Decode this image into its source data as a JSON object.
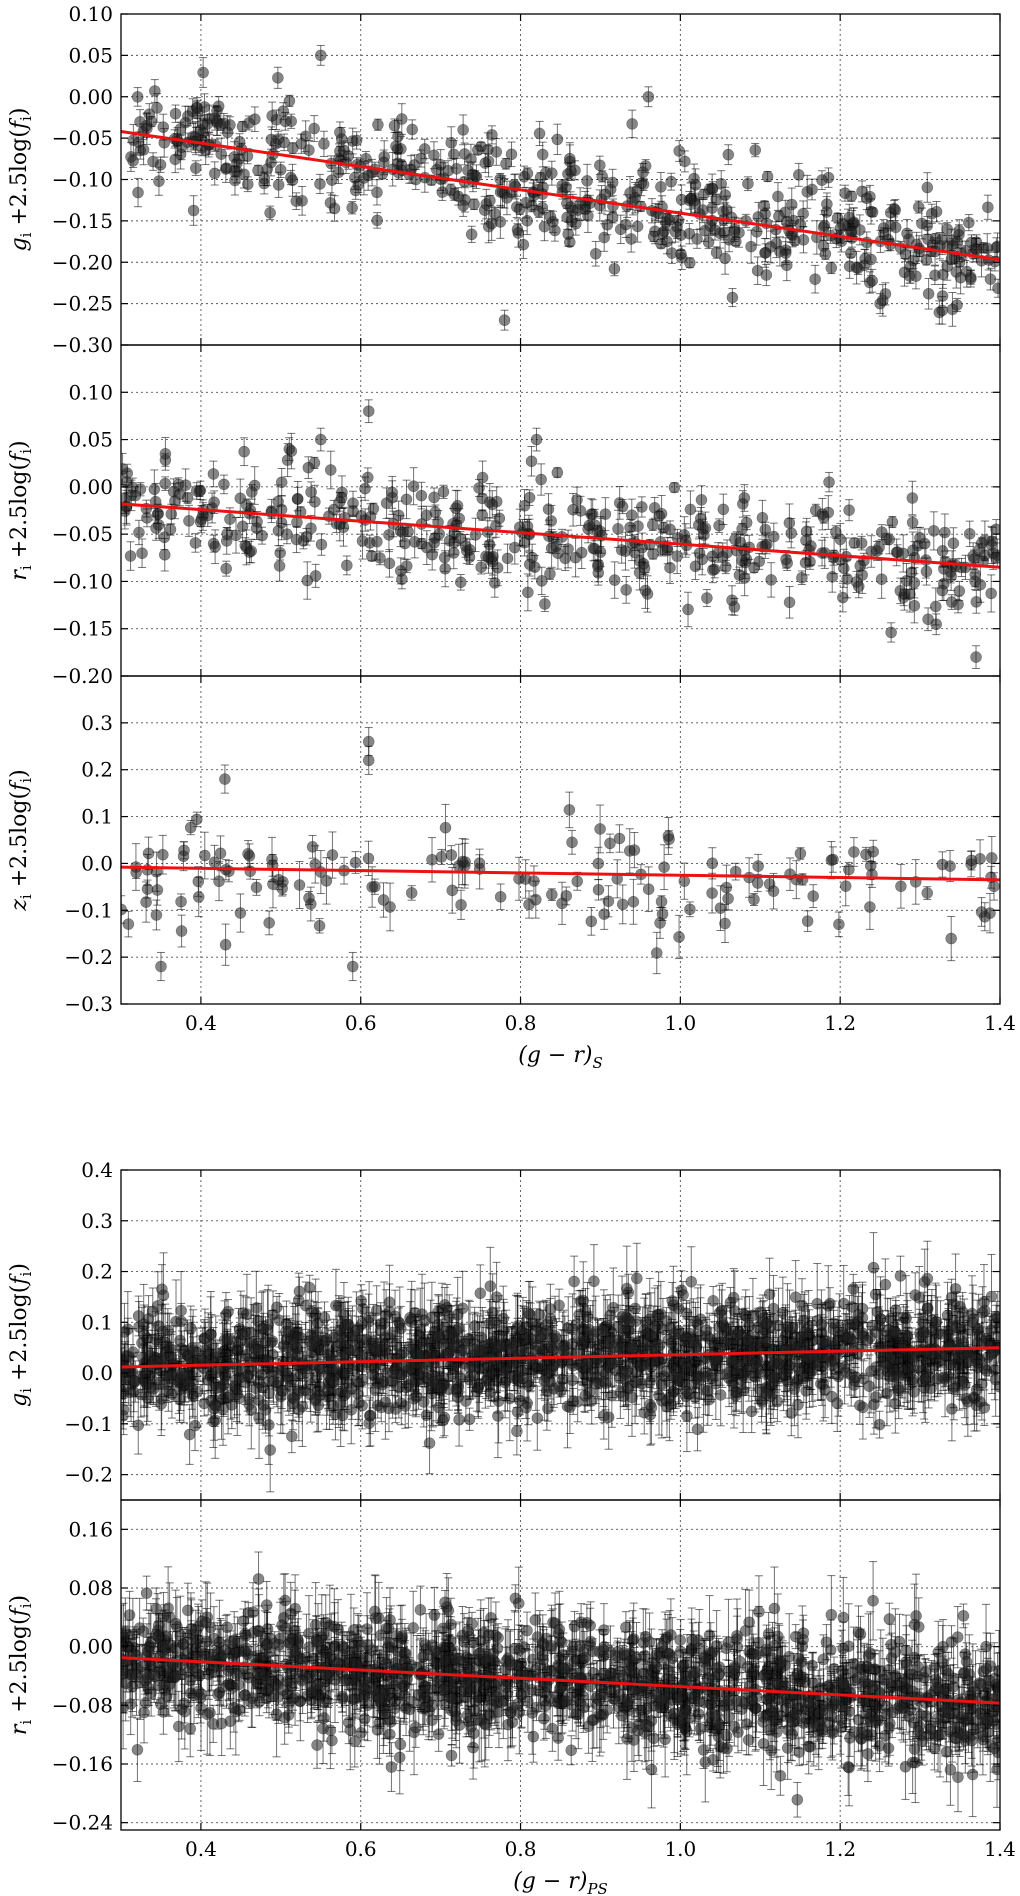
{
  "chart_data": [
    {
      "type": "scatter",
      "xlabel": "",
      "ylabel": "g_i + 2.5log(f_i)",
      "ylabel_parts": [
        "g",
        "i",
        "+2.5log(",
        "f",
        "i",
        ")"
      ],
      "xlim": [
        0.3,
        1.4
      ],
      "ylim": [
        -0.3,
        0.1
      ],
      "xticks": [
        0.4,
        0.6,
        0.8,
        1.0,
        1.2,
        1.4
      ],
      "yticks": [
        -0.3,
        -0.25,
        -0.2,
        -0.15,
        -0.1,
        -0.05,
        0.0,
        0.05,
        0.1
      ],
      "ytick_labels": [
        "−0.30",
        "−0.25",
        "−0.20",
        "−0.15",
        "−0.10",
        "−0.05",
        "0.00",
        "0.05",
        "0.10"
      ],
      "grid": true,
      "fit": {
        "x": [
          0.3,
          1.4
        ],
        "y": [
          -0.042,
          -0.197
        ],
        "color": "#ee1111"
      },
      "scatter": {
        "n_points": 520,
        "scatter_sd": 0.032,
        "error_mean": 0.012
      },
      "outliers": [
        {
          "x": 0.55,
          "y": 0.05
        },
        {
          "x": 0.78,
          "y": -0.27
        },
        {
          "x": 0.96,
          "y": 0.0
        },
        {
          "x": 1.06,
          "y": -0.07
        },
        {
          "x": 1.25,
          "y": -0.25
        }
      ]
    },
    {
      "type": "scatter",
      "xlabel": "",
      "ylabel": "r_i + 2.5log(f_i)",
      "ylabel_parts": [
        "r",
        "i",
        "+2.5log(",
        "f",
        "i",
        ")"
      ],
      "xlim": [
        0.3,
        1.4
      ],
      "ylim": [
        -0.2,
        0.15
      ],
      "xticks": [
        0.4,
        0.6,
        0.8,
        1.0,
        1.2,
        1.4
      ],
      "yticks": [
        -0.2,
        -0.15,
        -0.1,
        -0.05,
        0.0,
        0.05,
        0.1
      ],
      "ytick_labels": [
        "−0.20",
        "−0.15",
        "−0.10",
        "−0.05",
        "0.00",
        "0.05",
        "0.10"
      ],
      "grid": true,
      "fit": {
        "x": [
          0.3,
          1.4
        ],
        "y": [
          -0.018,
          -0.085
        ],
        "color": "#ee1111"
      },
      "scatter": {
        "n_points": 430,
        "scatter_sd": 0.03,
        "error_mean": 0.012
      },
      "outliers": [
        {
          "x": 0.61,
          "y": 0.08
        },
        {
          "x": 0.55,
          "y": 0.05
        },
        {
          "x": 0.82,
          "y": 0.05
        },
        {
          "x": 1.37,
          "y": -0.18
        },
        {
          "x": 1.31,
          "y": -0.14
        }
      ]
    },
    {
      "type": "scatter",
      "xlabel": "(g − r)_S",
      "xlabel_parts": [
        "(g − r)",
        "S"
      ],
      "ylabel": "z_i + 2.5log(f_i)",
      "ylabel_parts": [
        "z",
        "i",
        "+2.5log(",
        "f",
        "i",
        ")"
      ],
      "xlim": [
        0.3,
        1.4
      ],
      "ylim": [
        -0.3,
        0.4
      ],
      "xticks": [
        0.4,
        0.6,
        0.8,
        1.0,
        1.2,
        1.4
      ],
      "xtick_labels": [
        "0.4",
        "0.6",
        "0.8",
        "1.0",
        "1.2",
        "1.4"
      ],
      "yticks": [
        -0.3,
        -0.2,
        -0.1,
        0.0,
        0.1,
        0.2,
        0.3
      ],
      "ytick_labels": [
        "−0.3",
        "−0.2",
        "−0.1",
        "0.0",
        "0.1",
        "0.2",
        "0.3"
      ],
      "grid": true,
      "fit": {
        "x": [
          0.3,
          1.4
        ],
        "y": [
          -0.008,
          -0.035
        ],
        "color": "#ee1111"
      },
      "scatter": {
        "n_points": 150,
        "scatter_sd": 0.055,
        "error_mean": 0.03
      },
      "outliers": [
        {
          "x": 0.61,
          "y": 0.26
        },
        {
          "x": 0.61,
          "y": 0.22
        },
        {
          "x": 0.43,
          "y": 0.18
        },
        {
          "x": 0.35,
          "y": -0.22
        },
        {
          "x": 0.59,
          "y": -0.22
        }
      ]
    },
    {
      "type": "scatter",
      "xlabel": "",
      "ylabel": "g_i + 2.5log(f_i)",
      "ylabel_parts": [
        "g",
        "i",
        "+2.5log(",
        "f",
        "i",
        ")"
      ],
      "xlim": [
        0.3,
        1.4
      ],
      "ylim": [
        -0.25,
        0.4
      ],
      "xticks": [
        0.4,
        0.6,
        0.8,
        1.0,
        1.2,
        1.4
      ],
      "yticks": [
        -0.2,
        -0.1,
        0.0,
        0.1,
        0.2,
        0.3,
        0.4
      ],
      "ytick_labels": [
        "−0.2",
        "−0.1",
        "0.0",
        "0.1",
        "0.2",
        "0.3",
        "0.4"
      ],
      "grid": true,
      "fit": {
        "x": [
          0.3,
          1.4
        ],
        "y": [
          0.012,
          0.05
        ],
        "color": "#ee1111"
      },
      "scatter": {
        "n_points": 1600,
        "scatter_sd": 0.055,
        "error_mean": 0.05
      },
      "outliers": []
    },
    {
      "type": "scatter",
      "xlabel": "(g − r)_PS",
      "xlabel_parts": [
        "(g − r)",
        "PS"
      ],
      "ylabel": "r_i + 2.5log(f_i)",
      "ylabel_parts": [
        "r",
        "i",
        "+2.5log(",
        "f",
        "i",
        ")"
      ],
      "xlim": [
        0.3,
        1.4
      ],
      "ylim": [
        -0.25,
        0.2
      ],
      "xticks": [
        0.4,
        0.6,
        0.8,
        1.0,
        1.2,
        1.4
      ],
      "xtick_labels": [
        "0.4",
        "0.6",
        "0.8",
        "1.0",
        "1.2",
        "1.4"
      ],
      "yticks": [
        -0.24,
        -0.16,
        -0.08,
        0.0,
        0.08,
        0.16
      ],
      "ytick_labels": [
        "−0.24",
        "−0.16",
        "−0.08",
        "0.00",
        "0.08",
        "0.16"
      ],
      "grid": true,
      "fit": {
        "x": [
          0.3,
          1.4
        ],
        "y": [
          -0.015,
          -0.077
        ],
        "color": "#ee1111"
      },
      "scatter": {
        "n_points": 1500,
        "scatter_sd": 0.04,
        "error_mean": 0.035
      },
      "outliers": []
    }
  ]
}
